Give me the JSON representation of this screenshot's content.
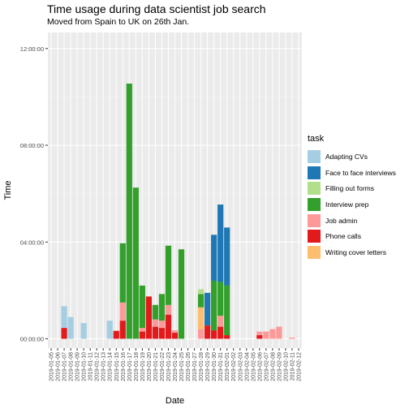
{
  "chart_data": {
    "type": "bar",
    "stacked": true,
    "title": "Time usage during data scientist job search",
    "subtitle": "Moved from Spain to UK on 26th Jan.",
    "xlabel": "Date",
    "ylabel": "Time",
    "legend_title": "task",
    "legend_position": "right",
    "grid": true,
    "ylim_hours": [
      0,
      13
    ],
    "y_ticks": [
      {
        "hours": 0,
        "label": "00:00:00"
      },
      {
        "hours": 4,
        "label": "04:00:00"
      },
      {
        "hours": 8,
        "label": "08:00:00"
      },
      {
        "hours": 12,
        "label": "12:00:00"
      }
    ],
    "categories": [
      "2019-01-05",
      "2019-01-06",
      "2019-01-07",
      "2019-01-08",
      "2019-01-09",
      "2019-01-10",
      "2019-01-11",
      "2019-01-12",
      "2019-01-13",
      "2019-01-14",
      "2019-01-15",
      "2019-01-16",
      "2019-01-17",
      "2019-01-18",
      "2019-01-19",
      "2019-01-20",
      "2019-01-21",
      "2019-01-22",
      "2019-01-23",
      "2019-01-24",
      "2019-01-25",
      "2019-01-26",
      "2019-01-27",
      "2019-01-28",
      "2019-01-29",
      "2019-01-30",
      "2019-01-31",
      "2019-02-01",
      "2019-02-02",
      "2019-02-03",
      "2019-02-04",
      "2019-02-05",
      "2019-02-06",
      "2019-02-07",
      "2019-02-08",
      "2019-02-09",
      "2019-02-10",
      "2019-02-11",
      "2019-02-12"
    ],
    "series": [
      {
        "name": "Phone calls",
        "color": "#e31a1c",
        "values": [
          0,
          0,
          0.45,
          0,
          0,
          0,
          0,
          0,
          0,
          0,
          0.33,
          0.75,
          0,
          0,
          0.3,
          1.75,
          0.5,
          0.45,
          1.0,
          0.25,
          0,
          0,
          0,
          0,
          0.55,
          0.35,
          0.5,
          0.15,
          0,
          0,
          0,
          0,
          0.15,
          0,
          0,
          0,
          0,
          0,
          0
        ]
      },
      {
        "name": "Job admin",
        "color": "#fb9a99",
        "values": [
          0,
          0,
          0,
          0,
          0,
          0,
          0,
          0,
          0,
          0,
          0,
          0.75,
          0,
          0,
          0.15,
          0,
          0.3,
          0.3,
          0.4,
          0.1,
          0,
          0,
          0,
          0.4,
          0,
          0,
          0.45,
          0,
          0,
          0,
          0,
          0,
          0.15,
          0.3,
          0.4,
          0.5,
          0,
          0.05,
          0
        ]
      },
      {
        "name": "Writing cover letters",
        "color": "#fdbf6f",
        "values": [
          0,
          0,
          0,
          0,
          0,
          0,
          0,
          0,
          0,
          0,
          0,
          0,
          0,
          0,
          0,
          0,
          0,
          0,
          0,
          0,
          0,
          0,
          0,
          0.9,
          0,
          0,
          0,
          0,
          0,
          0,
          0,
          0,
          0,
          0,
          0,
          0,
          0,
          0,
          0
        ]
      },
      {
        "name": "Interview prep",
        "color": "#33a02c",
        "values": [
          0,
          0,
          0,
          0,
          0,
          0,
          0,
          0,
          0,
          0,
          0,
          2.45,
          10.55,
          6.25,
          1.75,
          0,
          0.6,
          1.1,
          2.45,
          0,
          3.7,
          0,
          0,
          0.55,
          0,
          2.05,
          1.4,
          2.05,
          0,
          0,
          0,
          0,
          0,
          0,
          0,
          0,
          0,
          0,
          0
        ]
      },
      {
        "name": "Filling out forms",
        "color": "#b2df8a",
        "values": [
          0,
          0,
          0,
          0,
          0,
          0,
          0,
          0,
          0,
          0,
          0,
          0,
          0,
          0,
          0,
          0,
          0,
          0,
          0,
          0,
          0,
          0,
          0,
          0.2,
          0,
          0,
          0,
          0,
          0,
          0,
          0,
          0,
          0,
          0,
          0,
          0,
          0,
          0,
          0
        ]
      },
      {
        "name": "Face to face interviews",
        "color": "#1f78b4",
        "values": [
          0,
          0,
          0,
          0,
          0,
          0,
          0,
          0,
          0,
          0,
          0,
          0,
          0,
          0,
          0,
          0,
          0,
          0,
          0,
          0,
          0,
          0,
          0,
          0,
          1.35,
          1.9,
          3.2,
          2.4,
          0,
          0,
          0,
          0,
          0,
          0,
          0,
          0,
          0,
          0,
          0
        ]
      },
      {
        "name": "Adapting CVs",
        "color": "#a6cee3",
        "values": [
          0,
          0,
          0.9,
          0.9,
          0,
          0.65,
          0,
          0,
          0,
          0.75,
          0,
          0,
          0,
          0,
          0,
          0,
          0,
          0,
          0,
          0,
          0,
          0,
          0,
          0,
          0,
          0,
          0,
          0,
          0,
          0,
          0,
          0,
          0,
          0,
          0,
          0,
          0,
          0,
          0
        ]
      }
    ],
    "legend_order": [
      "Adapting CVs",
      "Face to face interviews",
      "Filling out forms",
      "Interview prep",
      "Job admin",
      "Phone calls",
      "Writing cover letters"
    ]
  }
}
